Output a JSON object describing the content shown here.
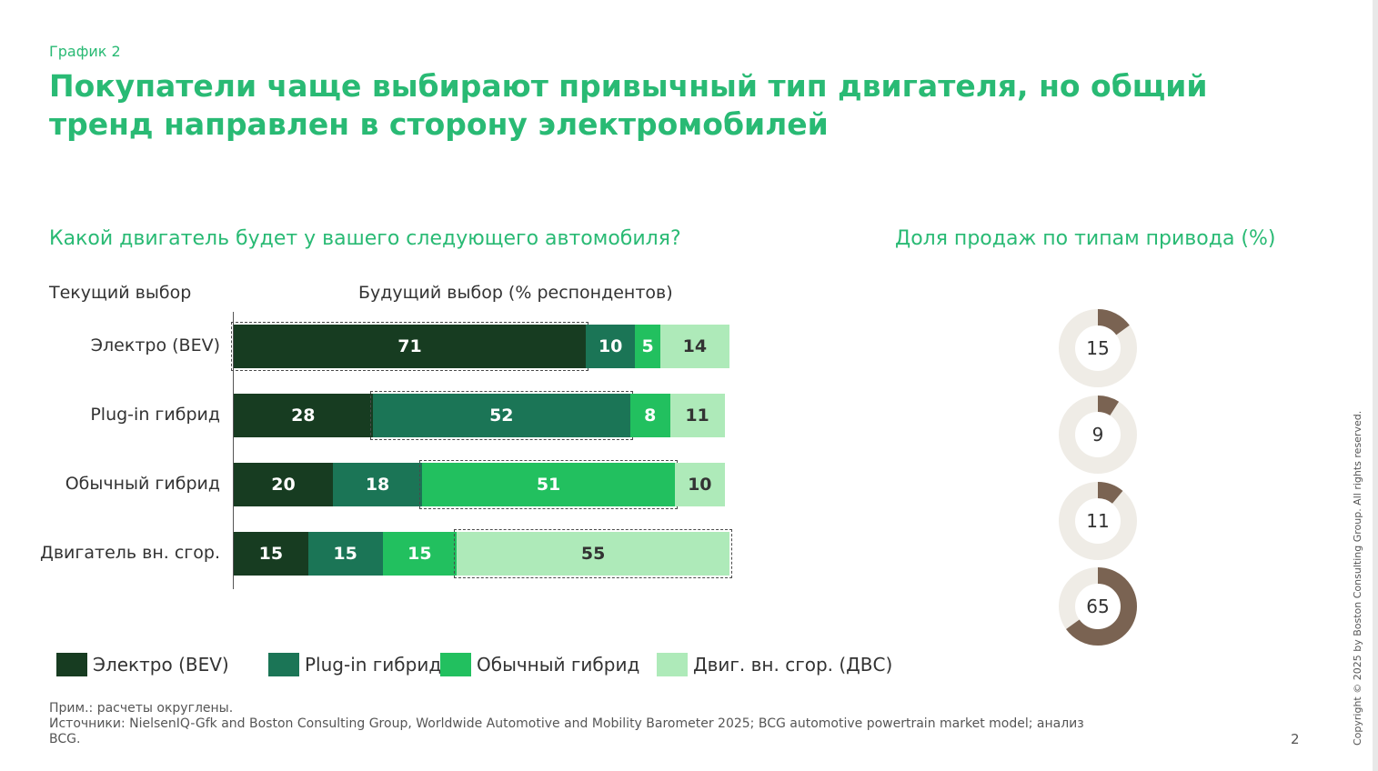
{
  "chart_label": "График 2",
  "headline": "Покупатели чаще выбирают привычный тип двигателя, но общий тренд направлен в сторону электромобилей",
  "left_subtitle": "Какой двигатель будет у вашего следующего автомобиля?",
  "right_subtitle": "Доля продаж по типам привода (%)",
  "col_current": "Текущий выбор",
  "col_future": "Будущий выбор (% респондентов)",
  "colors": {
    "bev": "#173c21",
    "phev": "#1b7556",
    "hev": "#22c05f",
    "ice": "#aeeab9",
    "donut_fill": "#7a6352",
    "donut_track": "#efece6"
  },
  "chart_data": [
    {
      "type": "bar",
      "stacked": true,
      "orientation": "horizontal",
      "title": "Какой двигатель будет у вашего следующего автомобиля?",
      "categories": [
        "Электро (BEV)",
        "Plug-in гибрид",
        "Обычный гибрид",
        "Двигатель вн. сгор."
      ],
      "series": [
        {
          "name": "Электро (BEV)",
          "values": [
            71,
            28,
            20,
            15
          ]
        },
        {
          "name": "Plug-in гибрид",
          "values": [
            10,
            52,
            18,
            15
          ]
        },
        {
          "name": "Обычный гибрид",
          "values": [
            5,
            8,
            51,
            15
          ]
        },
        {
          "name": "Двиг. вн. сгор. (ДВС)",
          "values": [
            14,
            11,
            10,
            55
          ]
        }
      ],
      "xlim": [
        0,
        100
      ],
      "xlabel": "Будущий выбор (% респондентов)",
      "ylabel": "Текущий выбор",
      "highlight": "diagonal (same type kept)"
    },
    {
      "type": "pie",
      "title": "Доля продаж по типам привода (%)",
      "style": "donut",
      "categories": [
        "Электро (BEV)",
        "Plug-in гибрид",
        "Обычный гибрид",
        "Двигатель вн. сгор."
      ],
      "values": [
        15,
        9,
        11,
        65
      ]
    }
  ],
  "legend": [
    {
      "label": "Электро (BEV)",
      "key": "bev"
    },
    {
      "label": "Plug-in гибрид",
      "key": "phev"
    },
    {
      "label": "Обычный гибрид",
      "key": "hev"
    },
    {
      "label": "Двиг. вн. сгор. (ДВС)",
      "key": "ice"
    }
  ],
  "footnotes": {
    "note": "Прим.: расчеты округлены.",
    "sources": "Источники: NielsenIQ-Gfk and Boston Consulting Group, Worldwide Automotive and Mobility Barometer 2025; BCG automotive powertrain market model; анализ BCG."
  },
  "page_number": "2",
  "copyright": "Copyright © 2025 by Boston Consulting Group. All rights reserved."
}
